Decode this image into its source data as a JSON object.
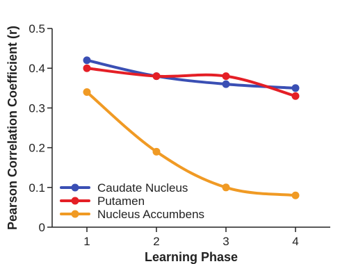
{
  "chart_data": {
    "type": "line",
    "title": "",
    "xlabel": "Learning Phase",
    "ylabel": "Pearson Correlation Coefficient (r)",
    "x": [
      1,
      2,
      3,
      4
    ],
    "xlim": [
      0.5,
      4.5
    ],
    "ylim": [
      0,
      0.5
    ],
    "xticks": [
      "1",
      "2",
      "3",
      "4"
    ],
    "yticks": [
      "0",
      "0.1",
      "0.2",
      "0.3",
      "0.4",
      "0.5"
    ],
    "grid": false,
    "legend_position": "bottom-left",
    "smooth": true,
    "series": [
      {
        "name": "Caudate Nucleus",
        "color": "#3a4fb4",
        "values": [
          0.42,
          0.38,
          0.36,
          0.35
        ]
      },
      {
        "name": "Putamen",
        "color": "#e41f26",
        "values": [
          0.4,
          0.38,
          0.38,
          0.33
        ]
      },
      {
        "name": "Nucleus Accumbens",
        "color": "#f09a24",
        "values": [
          0.34,
          0.19,
          0.1,
          0.08
        ]
      }
    ]
  }
}
